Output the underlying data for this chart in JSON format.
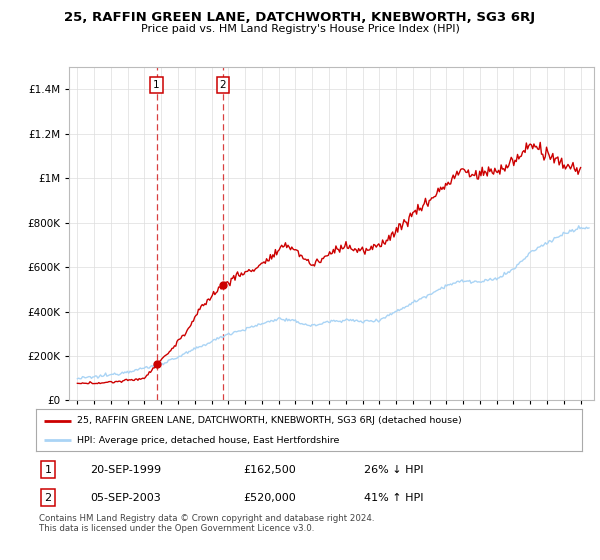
{
  "title": "25, RAFFIN GREEN LANE, DATCHWORTH, KNEBWORTH, SG3 6RJ",
  "subtitle": "Price paid vs. HM Land Registry's House Price Index (HPI)",
  "sale1_date": 1999.72,
  "sale1_price": 162500,
  "sale2_date": 2003.67,
  "sale2_price": 520000,
  "hpi_color": "#aad4f5",
  "price_color": "#cc0000",
  "legend_text1": "25, RAFFIN GREEN LANE, DATCHWORTH, KNEBWORTH, SG3 6RJ (detached house)",
  "legend_text2": "HPI: Average price, detached house, East Hertfordshire",
  "table_row1": [
    "1",
    "20-SEP-1999",
    "£162,500",
    "26% ↓ HPI"
  ],
  "table_row2": [
    "2",
    "05-SEP-2003",
    "£520,000",
    "41% ↑ HPI"
  ],
  "footnote": "Contains HM Land Registry data © Crown copyright and database right 2024.\nThis data is licensed under the Open Government Licence v3.0.",
  "ylim_max": 1500000,
  "xlim_start": 1994.5,
  "xlim_end": 2025.8,
  "background_color": "#ffffff",
  "grid_color": "#dddddd",
  "hpi_anchors_x": [
    1995,
    1996,
    1997,
    1998,
    1999,
    2000,
    2001,
    2002,
    2003,
    2004,
    2005,
    2006,
    2007,
    2008,
    2009,
    2010,
    2011,
    2012,
    2013,
    2014,
    2015,
    2016,
    2017,
    2018,
    2019,
    2020,
    2021,
    2022,
    2023,
    2024,
    2025
  ],
  "hpi_anchors_y": [
    98000,
    105000,
    115000,
    130000,
    145000,
    165000,
    195000,
    230000,
    265000,
    300000,
    320000,
    345000,
    368000,
    355000,
    335000,
    355000,
    362000,
    355000,
    362000,
    400000,
    440000,
    478000,
    518000,
    538000,
    532000,
    548000,
    590000,
    665000,
    710000,
    750000,
    775000
  ],
  "price_anchors_x": [
    1995,
    1996,
    1997,
    1998,
    1999.0,
    1999.72,
    2000.5,
    2001.5,
    2002.5,
    2003.67,
    2004.5,
    2005.5,
    2006.5,
    2007.5,
    2008.0,
    2008.5,
    2009.0,
    2009.5,
    2010.0,
    2010.5,
    2011.0,
    2011.5,
    2012.0,
    2012.5,
    2013.0,
    2013.5,
    2014.0,
    2014.5,
    2015.0,
    2015.5,
    2016.0,
    2016.5,
    2017.0,
    2017.5,
    2018.0,
    2018.5,
    2019.0,
    2019.5,
    2020.0,
    2020.5,
    2021.0,
    2021.5,
    2022.0,
    2022.5,
    2023.0,
    2023.5,
    2024.0,
    2024.5,
    2025.0
  ],
  "price_anchors_y": [
    75000,
    78000,
    82000,
    90000,
    100000,
    162500,
    220000,
    310000,
    430000,
    520000,
    560000,
    590000,
    640000,
    700000,
    680000,
    640000,
    610000,
    630000,
    660000,
    680000,
    700000,
    680000,
    670000,
    680000,
    700000,
    730000,
    760000,
    800000,
    840000,
    870000,
    900000,
    940000,
    970000,
    1010000,
    1040000,
    1010000,
    1020000,
    1030000,
    1030000,
    1050000,
    1080000,
    1100000,
    1160000,
    1130000,
    1100000,
    1080000,
    1060000,
    1050000,
    1040000
  ]
}
